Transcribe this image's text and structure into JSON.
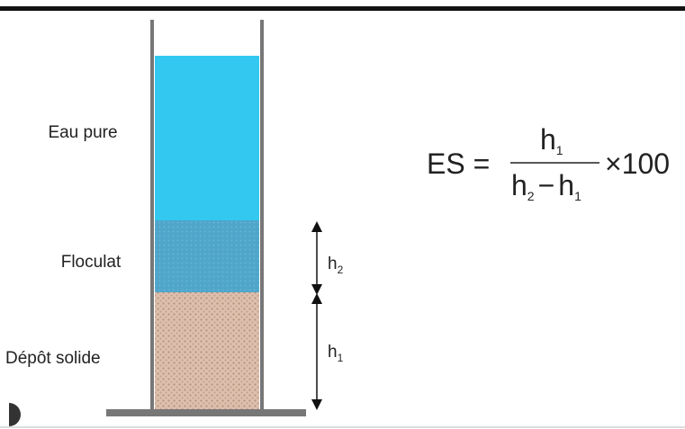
{
  "labels": {
    "water": "Eau pure",
    "floc": "Floculat",
    "deposit": "Dépôt solide"
  },
  "heights": {
    "h2": {
      "letter": "h",
      "sub": "2"
    },
    "h1": {
      "letter": "h",
      "sub": "1"
    }
  },
  "formula": {
    "lhs": "ES =",
    "numerator": {
      "letter": "h",
      "sub": "1"
    },
    "denominator": {
      "a_letter": "h",
      "a_sub": "2",
      "op": "−",
      "b_letter": "h",
      "b_sub": "1"
    },
    "times": "×",
    "factor": "100"
  }
}
